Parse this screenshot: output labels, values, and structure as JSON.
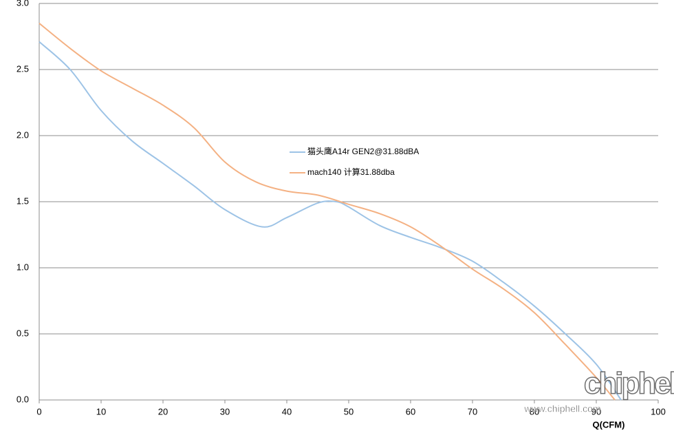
{
  "chart_data": {
    "type": "line",
    "x_label": "Q(CFM)",
    "xlim": [
      0,
      100
    ],
    "xticks": [
      0,
      10,
      20,
      30,
      40,
      50,
      60,
      70,
      80,
      90,
      100
    ],
    "ylim": [
      0,
      3
    ],
    "yticks": [
      {
        "value": 0,
        "label": "0.0"
      },
      {
        "value": 0.5,
        "label": "0.5"
      },
      {
        "value": 1,
        "label": "1.0"
      },
      {
        "value": 1.5,
        "label": "1.5"
      },
      {
        "value": 2,
        "label": "2.0"
      },
      {
        "value": 2.5,
        "label": "2.5"
      },
      {
        "value": 3,
        "label": "3.0"
      }
    ],
    "grid": true,
    "series": [
      {
        "name": "猫头鹰A14r GEN2@31.88dBA",
        "color": "#9dc3e6",
        "x": [
          0,
          5,
          10,
          15,
          20,
          25,
          30,
          36,
          40,
          45,
          48,
          50,
          55,
          60,
          65,
          70,
          75,
          80,
          85,
          90,
          94
        ],
        "values": [
          2.71,
          2.5,
          2.19,
          1.96,
          1.79,
          1.62,
          1.44,
          1.31,
          1.38,
          1.49,
          1.5,
          1.46,
          1.32,
          1.23,
          1.15,
          1.05,
          0.89,
          0.71,
          0.5,
          0.27,
          0
        ]
      },
      {
        "name": "mach140 计算31.88dba",
        "color": "#f4b183",
        "x": [
          0,
          5,
          10,
          15,
          20,
          25,
          30,
          35,
          40,
          45,
          50,
          55,
          60,
          65,
          70,
          75,
          80,
          85,
          90,
          93
        ],
        "values": [
          2.85,
          2.66,
          2.49,
          2.36,
          2.23,
          2.06,
          1.8,
          1.65,
          1.58,
          1.55,
          1.48,
          1.41,
          1.31,
          1.16,
          0.99,
          0.84,
          0.66,
          0.42,
          0.17,
          0
        ]
      }
    ],
    "watermark_logo": "chiphell",
    "watermark_url": "www.chiphell.com"
  }
}
